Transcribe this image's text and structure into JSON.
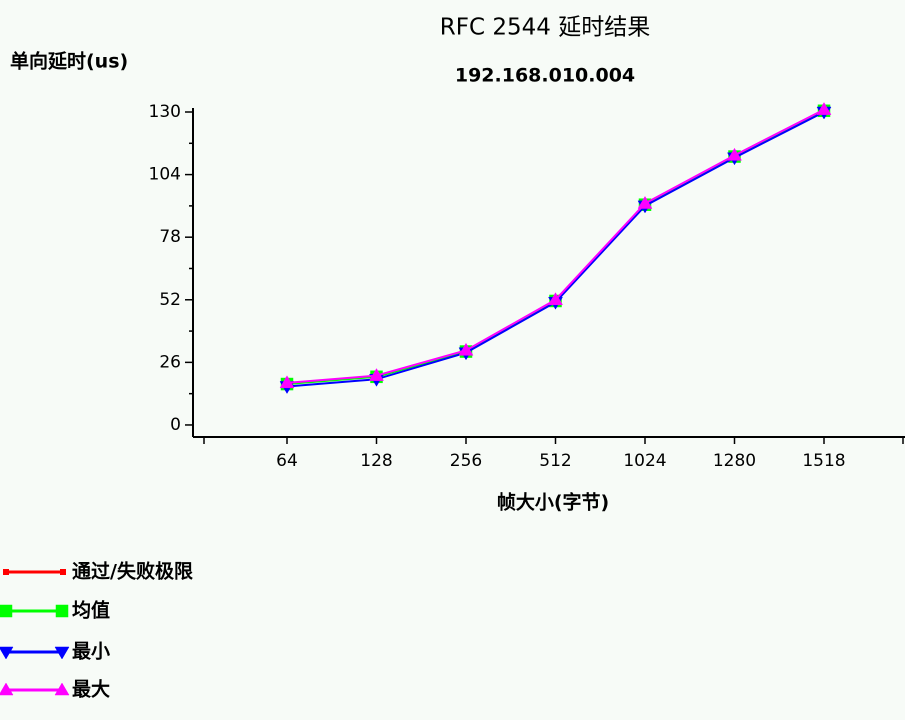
{
  "chart_data": {
    "type": "line",
    "title": "RFC 2544 延时结果",
    "subtitle": "192.168.010.004",
    "y_label": "单向延时(us)",
    "x_label": "帧大小(字节)",
    "categories": [
      "64",
      "128",
      "256",
      "512",
      "1024",
      "1280",
      "1518"
    ],
    "series": [
      {
        "name": "通过/失败极限",
        "color": "#ff0000",
        "marker": "none",
        "values": [
          null,
          null,
          null,
          null,
          null,
          null,
          null
        ]
      },
      {
        "name": "均值",
        "color": "#00ff00",
        "marker": "square",
        "values": [
          17,
          20,
          30.5,
          51.5,
          91.5,
          111.5,
          130.5
        ]
      },
      {
        "name": "最小",
        "color": "#0000ff",
        "marker": "triangle-down",
        "values": [
          16,
          19,
          30,
          51,
          91,
          111,
          130
        ]
      },
      {
        "name": "最大",
        "color": "#ff00ff",
        "marker": "triangle-up",
        "values": [
          17.5,
          20.5,
          31,
          52,
          92,
          112,
          131
        ]
      }
    ],
    "ylim": [
      -5,
      130
    ],
    "yticks": [
      0,
      26,
      52,
      78,
      104,
      130
    ],
    "legend": "bottom-left"
  }
}
